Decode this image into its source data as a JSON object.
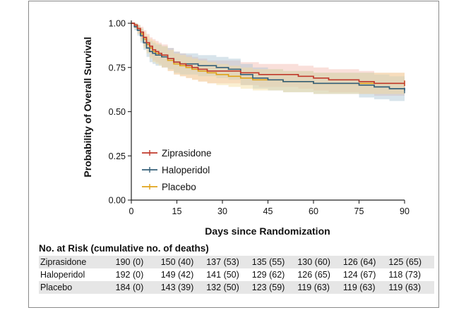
{
  "chart_data": {
    "type": "line",
    "subtype": "kaplan-meier",
    "title": "",
    "xlabel": "Days since Randomization",
    "ylabel": "Probability of Overall Survival",
    "xlim": [
      0,
      90
    ],
    "ylim": [
      0.0,
      1.0
    ],
    "xticks": [
      "0",
      "15",
      "30",
      "45",
      "60",
      "75",
      "90"
    ],
    "xtick_values": [
      0,
      15,
      30,
      45,
      60,
      75,
      90
    ],
    "yticks": [
      "0.00",
      "0.25",
      "0.50",
      "0.75",
      "1.00"
    ],
    "ytick_values": [
      0.0,
      0.25,
      0.5,
      0.75,
      1.0
    ],
    "legend_position": "lower-left",
    "series": [
      {
        "name": "Ziprasidone",
        "color": "#c0392b",
        "band_color": "#f2b9ad",
        "x": [
          0,
          1,
          2,
          3,
          4,
          5,
          6,
          7,
          8,
          9,
          10,
          12,
          14,
          16,
          18,
          20,
          22,
          25,
          28,
          32,
          36,
          40,
          42,
          45,
          50,
          55,
          60,
          65,
          70,
          75,
          80,
          85,
          90
        ],
        "y": [
          1.0,
          0.99,
          0.97,
          0.95,
          0.92,
          0.89,
          0.87,
          0.85,
          0.84,
          0.83,
          0.82,
          0.8,
          0.78,
          0.77,
          0.76,
          0.75,
          0.74,
          0.73,
          0.73,
          0.73,
          0.72,
          0.72,
          0.71,
          0.71,
          0.71,
          0.7,
          0.69,
          0.68,
          0.68,
          0.67,
          0.66,
          0.66,
          0.66
        ],
        "ci_lower": [
          1.0,
          0.97,
          0.94,
          0.91,
          0.87,
          0.84,
          0.81,
          0.79,
          0.78,
          0.77,
          0.75,
          0.73,
          0.71,
          0.7,
          0.69,
          0.68,
          0.67,
          0.66,
          0.66,
          0.66,
          0.65,
          0.65,
          0.64,
          0.64,
          0.64,
          0.63,
          0.62,
          0.61,
          0.61,
          0.6,
          0.59,
          0.59,
          0.59
        ],
        "ci_upper": [
          1.0,
          1.0,
          0.99,
          0.98,
          0.96,
          0.94,
          0.92,
          0.91,
          0.9,
          0.89,
          0.88,
          0.86,
          0.84,
          0.83,
          0.82,
          0.81,
          0.8,
          0.79,
          0.79,
          0.79,
          0.78,
          0.78,
          0.77,
          0.77,
          0.77,
          0.76,
          0.75,
          0.74,
          0.74,
          0.73,
          0.72,
          0.72,
          0.72
        ]
      },
      {
        "name": "Haloperidol",
        "color": "#35607a",
        "band_color": "#a9c3d3",
        "x": [
          0,
          1,
          2,
          3,
          4,
          5,
          6,
          7,
          8,
          9,
          10,
          12,
          14,
          16,
          18,
          20,
          22,
          25,
          28,
          32,
          36,
          40,
          45,
          50,
          55,
          60,
          65,
          70,
          75,
          80,
          85,
          90
        ],
        "y": [
          1.0,
          0.98,
          0.96,
          0.93,
          0.89,
          0.86,
          0.84,
          0.83,
          0.82,
          0.82,
          0.81,
          0.8,
          0.78,
          0.77,
          0.77,
          0.77,
          0.76,
          0.76,
          0.75,
          0.74,
          0.71,
          0.69,
          0.68,
          0.67,
          0.67,
          0.66,
          0.66,
          0.66,
          0.65,
          0.64,
          0.63,
          0.62
        ],
        "ci_lower": [
          1.0,
          0.96,
          0.93,
          0.89,
          0.85,
          0.81,
          0.78,
          0.77,
          0.76,
          0.76,
          0.75,
          0.74,
          0.72,
          0.71,
          0.71,
          0.71,
          0.7,
          0.7,
          0.69,
          0.68,
          0.65,
          0.63,
          0.62,
          0.61,
          0.61,
          0.6,
          0.6,
          0.6,
          0.58,
          0.57,
          0.56,
          0.55
        ],
        "ci_upper": [
          1.0,
          1.0,
          0.99,
          0.97,
          0.93,
          0.91,
          0.9,
          0.89,
          0.88,
          0.88,
          0.87,
          0.86,
          0.84,
          0.83,
          0.83,
          0.83,
          0.82,
          0.82,
          0.81,
          0.8,
          0.77,
          0.75,
          0.74,
          0.73,
          0.73,
          0.72,
          0.72,
          0.72,
          0.72,
          0.71,
          0.7,
          0.69
        ]
      },
      {
        "name": "Placebo",
        "color": "#e0a21a",
        "band_color": "#f5dc9a",
        "x": [
          0,
          1,
          2,
          3,
          4,
          5,
          6,
          7,
          8,
          9,
          10,
          12,
          14,
          16,
          18,
          20,
          22,
          25,
          28,
          32,
          36,
          40,
          45,
          50,
          55,
          60,
          65,
          70,
          75,
          80,
          85,
          90
        ],
        "y": [
          1.0,
          0.99,
          0.97,
          0.94,
          0.91,
          0.88,
          0.86,
          0.84,
          0.83,
          0.82,
          0.81,
          0.79,
          0.77,
          0.76,
          0.75,
          0.74,
          0.73,
          0.72,
          0.71,
          0.7,
          0.69,
          0.68,
          0.68,
          0.67,
          0.67,
          0.66,
          0.66,
          0.66,
          0.66,
          0.66,
          0.66,
          0.66
        ],
        "ci_lower": [
          1.0,
          0.97,
          0.94,
          0.9,
          0.86,
          0.83,
          0.8,
          0.78,
          0.77,
          0.76,
          0.75,
          0.73,
          0.71,
          0.7,
          0.69,
          0.68,
          0.67,
          0.66,
          0.65,
          0.64,
          0.63,
          0.62,
          0.62,
          0.61,
          0.61,
          0.6,
          0.6,
          0.6,
          0.6,
          0.6,
          0.6,
          0.6
        ],
        "ci_upper": [
          1.0,
          1.0,
          0.99,
          0.97,
          0.95,
          0.93,
          0.91,
          0.9,
          0.89,
          0.88,
          0.87,
          0.85,
          0.83,
          0.82,
          0.81,
          0.8,
          0.79,
          0.78,
          0.77,
          0.76,
          0.75,
          0.74,
          0.74,
          0.73,
          0.73,
          0.72,
          0.72,
          0.72,
          0.72,
          0.72,
          0.72,
          0.72
        ]
      }
    ]
  },
  "risk_table": {
    "title": "No. at Risk (cumulative no. of deaths)",
    "rows": [
      {
        "name": "Ziprasidone",
        "values": [
          "190 (0)",
          "150 (40)",
          "137 (53)",
          "135 (55)",
          "130 (60)",
          "126 (64)",
          "125 (65)"
        ]
      },
      {
        "name": "Haloperidol",
        "values": [
          "192 (0)",
          "149 (42)",
          "141 (50)",
          "129 (62)",
          "126 (65)",
          "124 (67)",
          "118 (73)"
        ]
      },
      {
        "name": "Placebo",
        "values": [
          "184 (0)",
          "143 (39)",
          "132 (50)",
          "123 (59)",
          "119 (63)",
          "119 (63)",
          "119 (63)"
        ]
      }
    ]
  }
}
